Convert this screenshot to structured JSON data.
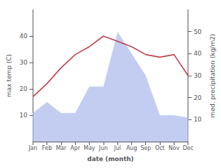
{
  "chart_data": {
    "type": "line",
    "xlabel": "date (month)",
    "ylabel": "max temp (C)",
    "y2label": "med. precipitation (kg/m2)",
    "categories": [
      "Jan",
      "Feb",
      "Mar",
      "Apr",
      "May",
      "Jun",
      "Jul",
      "Aug",
      "Sep",
      "Oct",
      "Nov",
      "Dec"
    ],
    "series": [
      {
        "type": "area",
        "axis": "y2",
        "color": "#b8c4ee",
        "values": [
          13,
          18,
          13,
          13,
          25,
          25,
          50,
          40,
          30,
          12,
          12,
          11
        ]
      },
      {
        "type": "line",
        "color": "#c0404a",
        "values": [
          17,
          22,
          28,
          33,
          36,
          40,
          38,
          36,
          33,
          32,
          33,
          25
        ]
      }
    ],
    "ylim": [
      0,
      50
    ],
    "yticks": [
      10,
      20,
      30,
      40
    ],
    "y2lim": [
      0,
      60
    ],
    "y2ticks": [
      10,
      20,
      30,
      40,
      50
    ],
    "grid": false
  }
}
